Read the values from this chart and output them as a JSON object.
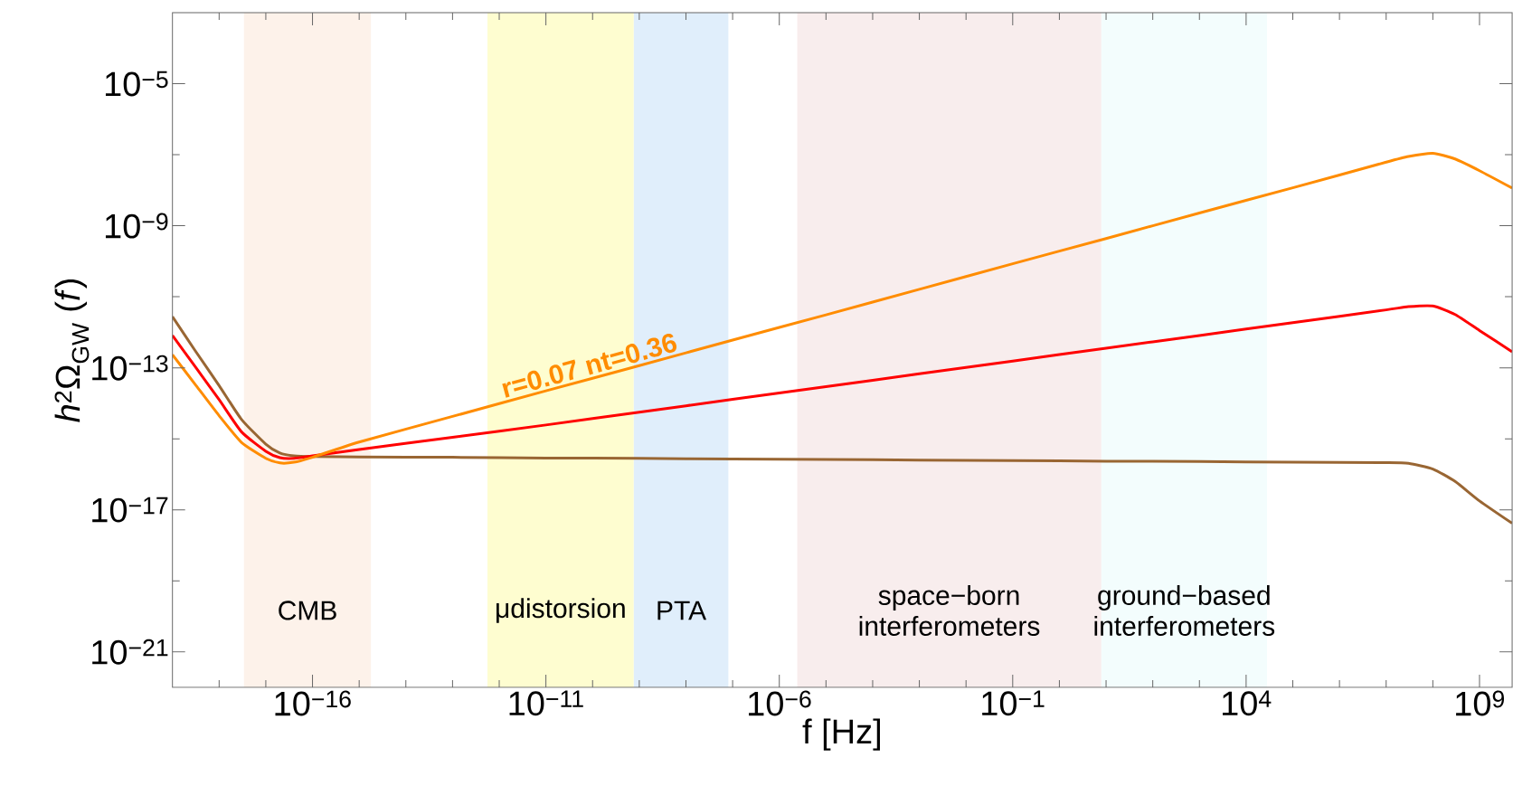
{
  "chart_data": {
    "type": "line",
    "xlabel": "f [Hz]",
    "ylabel": "*h*$^{2}$Ω$_{GW}$ (*f*)",
    "log": "xy",
    "grid": false,
    "legend": false,
    "marker": "none",
    "line_style": "solid",
    "xlim": [
      1e-19,
      5000000000.0
    ],
    "ylim": [
      1e-22,
      0.001
    ],
    "xticks": [
      {
        "value": 1e-18,
        "label": null
      },
      {
        "value": 1e-17,
        "label": null
      },
      {
        "value": 1e-16,
        "label": "10$^{−16}$"
      },
      {
        "value": 1e-15,
        "label": null
      },
      {
        "value": 1e-14,
        "label": null
      },
      {
        "value": 1e-13,
        "label": null
      },
      {
        "value": 1e-12,
        "label": null
      },
      {
        "value": 1e-11,
        "label": "10$^{−11}$"
      },
      {
        "value": 1e-10,
        "label": null
      },
      {
        "value": 1e-09,
        "label": null
      },
      {
        "value": 1e-08,
        "label": null
      },
      {
        "value": 1e-07,
        "label": null
      },
      {
        "value": 1e-06,
        "label": "10$^{−6}$"
      },
      {
        "value": 1e-05,
        "label": null
      },
      {
        "value": 0.0001,
        "label": null
      },
      {
        "value": 0.001,
        "label": null
      },
      {
        "value": 0.01,
        "label": null
      },
      {
        "value": 0.1,
        "label": "10$^{−1}$"
      },
      {
        "value": 1,
        "label": null
      },
      {
        "value": 10,
        "label": null
      },
      {
        "value": 100,
        "label": null
      },
      {
        "value": 1000,
        "label": null
      },
      {
        "value": 10000.0,
        "label": "10$^{4}$"
      },
      {
        "value": 100000.0,
        "label": null
      },
      {
        "value": 1000000.0,
        "label": null
      },
      {
        "value": 10000000.0,
        "label": null
      },
      {
        "value": 100000000.0,
        "label": null
      },
      {
        "value": 1000000000.0,
        "label": "10$^{9}$"
      }
    ],
    "yticks": [
      {
        "value": 1e-21,
        "label": "10$^{−21}$"
      },
      {
        "value": 1e-19,
        "label": null
      },
      {
        "value": 1e-17,
        "label": "10$^{−17}$"
      },
      {
        "value": 1e-15,
        "label": null
      },
      {
        "value": 1e-13,
        "label": "10$^{−13}$"
      },
      {
        "value": 1e-11,
        "label": null
      },
      {
        "value": 1e-09,
        "label": "10$^{−9}$"
      },
      {
        "value": 1e-07,
        "label": null
      },
      {
        "value": 1e-05,
        "label": "10$^{−5}$"
      }
    ],
    "x": [
      1e-19,
      3e-19,
      1e-18,
      3e-18,
      1e-17,
      2e-17,
      4e-17,
      1e-16,
      1e-15,
      1e-13,
      1e-11,
      1e-09,
      1e-07,
      1e-05,
      0.001,
      0.1,
      10,
      1000,
      100000.0,
      10000000.0,
      30000000.0,
      100000000.0,
      300000000.0,
      1000000000.0,
      5000000000.0
    ],
    "series": [
      {
        "color": "#996633",
        "values": [
          2.75e-12,
          3.16e-13,
          3.16e-14,
          3.55e-15,
          7.08e-16,
          3.98e-16,
          3.31e-16,
          3.16e-16,
          3.09e-16,
          3.02e-16,
          2.88e-16,
          2.82e-16,
          2.69e-16,
          2.63e-16,
          2.51e-16,
          2.45e-16,
          2.34e-16,
          2.29e-16,
          2.19e-16,
          2.14e-16,
          2.04e-16,
          1.41e-16,
          6.31e-17,
          1.78e-17,
          4.17e-18
        ]
      },
      {
        "color": "#ff0000",
        "values": [
          8.13e-13,
          1.12e-13,
          1.26e-14,
          1.58e-15,
          4.47e-16,
          2.95e-16,
          2.82e-16,
          3.31e-16,
          5.01e-16,
          1.1e-15,
          2.45e-15,
          5.62e-15,
          1.29e-14,
          2.95e-14,
          6.76e-14,
          1.55e-13,
          3.55e-13,
          8.13e-13,
          1.86e-12,
          4.27e-12,
          5.25e-12,
          5.5e-12,
          3.16e-12,
          1.12e-12,
          2.82e-13
        ]
      },
      {
        "name": "r=0.07  nt=0.36",
        "color": "#ff8c00",
        "values": [
          2.34e-13,
          3.55e-14,
          4.47e-15,
          7.94e-16,
          2.82e-16,
          2.09e-16,
          2.19e-16,
          3.02e-16,
          8.13e-16,
          4.27e-15,
          2.24e-14,
          1.15e-13,
          6.03e-13,
          3.09e-12,
          1.62e-11,
          8.51e-11,
          4.37e-10,
          2.29e-09,
          1.17e-08,
          6.17e-08,
          8.91e-08,
          1.1e-07,
          7.59e-08,
          3.55e-08,
          1.15e-08
        ]
      }
    ],
    "bands": [
      {
        "axis": "x",
        "from": 3.4e-18,
        "to": 1.8e-15,
        "label": "CMB",
        "color": "#fdf2ea"
      },
      {
        "axis": "x",
        "from": 5.6e-13,
        "to": 7.6e-10,
        "label": "μdistorsion",
        "color": "#fefdd0"
      },
      {
        "axis": "x",
        "from": 7.6e-10,
        "to": 8.1e-08,
        "label": "PTA",
        "color": "#e0eefb"
      },
      {
        "axis": "x",
        "from": 2.4e-06,
        "to": 7.9,
        "label": "space−born interferometers",
        "color": "#f8eded"
      },
      {
        "axis": "x",
        "from": 7.9,
        "to": 28000.0,
        "label": "ground−based interferometers",
        "color": "#f3fdfd"
      }
    ]
  }
}
